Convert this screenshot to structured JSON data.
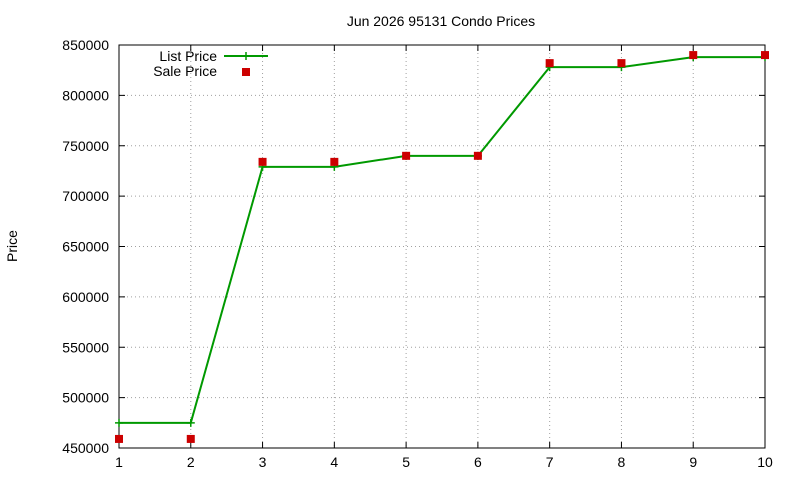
{
  "chart_data": {
    "type": "line",
    "title": "Jun 2026 95131 Condo Prices",
    "xlabel": "",
    "ylabel": "Price",
    "xlim": [
      1,
      10
    ],
    "ylim": [
      450000,
      850000
    ],
    "x_ticks": [
      "1",
      "2",
      "3",
      "4",
      "5",
      "6",
      "7",
      "8",
      "9",
      "10"
    ],
    "y_ticks": [
      "450000",
      "500000",
      "550000",
      "600000",
      "650000",
      "700000",
      "750000",
      "800000",
      "850000"
    ],
    "grid": true,
    "legend_position": "top-left",
    "series": [
      {
        "name": "List Price",
        "style": "line-with-plus-markers",
        "color": "#009900",
        "x": [
          1,
          2,
          3,
          4,
          5,
          6,
          7,
          8,
          9,
          10
        ],
        "values": [
          475000,
          475000,
          729000,
          729000,
          740000,
          740000,
          828000,
          828000,
          838000,
          838000
        ]
      },
      {
        "name": "Sale Price",
        "style": "square-markers",
        "color": "#cc0000",
        "x": [
          1,
          2,
          3,
          4,
          5,
          6,
          7,
          8,
          9,
          10
        ],
        "values": [
          459000,
          459000,
          734000,
          734000,
          740000,
          740000,
          832000,
          832000,
          840000,
          840000
        ]
      }
    ]
  }
}
